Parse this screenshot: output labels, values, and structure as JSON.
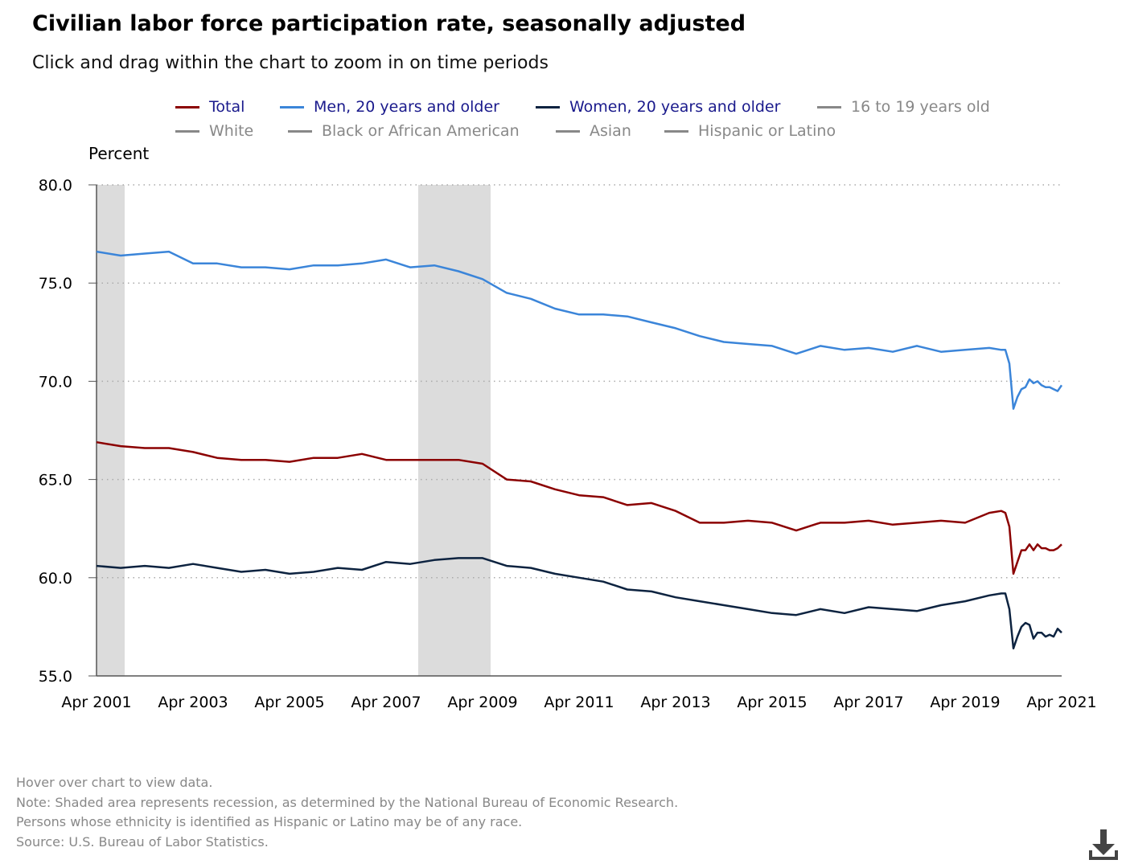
{
  "header": {
    "title": "Civilian labor force participation rate, seasonally adjusted",
    "subtitle": "Click and drag within the chart to zoom in on time periods"
  },
  "legend": {
    "row1": [
      {
        "label": "Total",
        "color": "#8b0000",
        "text_color": "#1a1a8c",
        "active": true
      },
      {
        "label": "Men, 20 years and older",
        "color": "#3b85d9",
        "text_color": "#1a1a8c",
        "active": true
      },
      {
        "label": "Women, 20 years and older",
        "color": "#0d2340",
        "text_color": "#1a1a8c",
        "active": true
      },
      {
        "label": "16 to 19 years old",
        "color": "#888888",
        "text_color": "#888888",
        "active": false
      }
    ],
    "row2": [
      {
        "label": "White",
        "color": "#888888",
        "text_color": "#888888",
        "active": false
      },
      {
        "label": "Black or African American",
        "color": "#888888",
        "text_color": "#888888",
        "active": false
      },
      {
        "label": "Asian",
        "color": "#888888",
        "text_color": "#888888",
        "active": false
      },
      {
        "label": "Hispanic or Latino",
        "color": "#888888",
        "text_color": "#888888",
        "active": false
      }
    ]
  },
  "footer": {
    "hover": "Hover over chart to view data.",
    "note": "Note: Shaded area represents recession, as determined by the National Bureau of Economic Research.",
    "ethnicity": "Persons whose ethnicity is identified as Hispanic or Latino may be of any race.",
    "source": "Source: U.S. Bureau of Labor Statistics."
  },
  "download_icon": "download-icon",
  "chart_data": {
    "type": "line",
    "ylabel": "Percent",
    "ylim": [
      55.0,
      80.0
    ],
    "yticks": [
      "55.0",
      "60.0",
      "65.0",
      "70.0",
      "75.0",
      "80.0"
    ],
    "xlim": [
      "2001-04",
      "2021-04"
    ],
    "xticks": [
      "Apr 2001",
      "Apr 2003",
      "Apr 2005",
      "Apr 2007",
      "Apr 2009",
      "Apr 2011",
      "Apr 2013",
      "Apr 2015",
      "Apr 2017",
      "Apr 2019",
      "Apr 2021"
    ],
    "grid": "horizontal dotted",
    "recessions": [
      {
        "start": "2001-04",
        "end": "2001-11"
      },
      {
        "start": "2007-12",
        "end": "2009-06"
      }
    ],
    "series": [
      {
        "name": "Total",
        "color": "#8b0000",
        "points": [
          [
            "2001-04",
            66.9
          ],
          [
            "2001-10",
            66.7
          ],
          [
            "2002-04",
            66.6
          ],
          [
            "2002-10",
            66.6
          ],
          [
            "2003-04",
            66.4
          ],
          [
            "2003-10",
            66.1
          ],
          [
            "2004-04",
            66.0
          ],
          [
            "2004-10",
            66.0
          ],
          [
            "2005-04",
            65.9
          ],
          [
            "2005-10",
            66.1
          ],
          [
            "2006-04",
            66.1
          ],
          [
            "2006-10",
            66.3
          ],
          [
            "2007-04",
            66.0
          ],
          [
            "2007-10",
            66.0
          ],
          [
            "2008-04",
            66.0
          ],
          [
            "2008-10",
            66.0
          ],
          [
            "2009-04",
            65.8
          ],
          [
            "2009-10",
            65.0
          ],
          [
            "2010-04",
            64.9
          ],
          [
            "2010-10",
            64.5
          ],
          [
            "2011-04",
            64.2
          ],
          [
            "2011-10",
            64.1
          ],
          [
            "2012-04",
            63.7
          ],
          [
            "2012-10",
            63.8
          ],
          [
            "2013-04",
            63.4
          ],
          [
            "2013-10",
            62.8
          ],
          [
            "2014-04",
            62.8
          ],
          [
            "2014-10",
            62.9
          ],
          [
            "2015-04",
            62.8
          ],
          [
            "2015-10",
            62.4
          ],
          [
            "2016-04",
            62.8
          ],
          [
            "2016-10",
            62.8
          ],
          [
            "2017-04",
            62.9
          ],
          [
            "2017-10",
            62.7
          ],
          [
            "2018-04",
            62.8
          ],
          [
            "2018-10",
            62.9
          ],
          [
            "2019-04",
            62.8
          ],
          [
            "2019-10",
            63.3
          ],
          [
            "2020-01",
            63.4
          ],
          [
            "2020-02",
            63.3
          ],
          [
            "2020-03",
            62.6
          ],
          [
            "2020-04",
            60.2
          ],
          [
            "2020-05",
            60.8
          ],
          [
            "2020-06",
            61.4
          ],
          [
            "2020-07",
            61.4
          ],
          [
            "2020-08",
            61.7
          ],
          [
            "2020-09",
            61.4
          ],
          [
            "2020-10",
            61.7
          ],
          [
            "2020-11",
            61.5
          ],
          [
            "2020-12",
            61.5
          ],
          [
            "2021-01",
            61.4
          ],
          [
            "2021-02",
            61.4
          ],
          [
            "2021-03",
            61.5
          ],
          [
            "2021-04",
            61.7
          ]
        ]
      },
      {
        "name": "Men, 20 years and older",
        "color": "#3b85d9",
        "points": [
          [
            "2001-04",
            76.6
          ],
          [
            "2001-10",
            76.4
          ],
          [
            "2002-04",
            76.5
          ],
          [
            "2002-10",
            76.6
          ],
          [
            "2003-04",
            76.0
          ],
          [
            "2003-10",
            76.0
          ],
          [
            "2004-04",
            75.8
          ],
          [
            "2004-10",
            75.8
          ],
          [
            "2005-04",
            75.7
          ],
          [
            "2005-10",
            75.9
          ],
          [
            "2006-04",
            75.9
          ],
          [
            "2006-10",
            76.0
          ],
          [
            "2007-04",
            76.2
          ],
          [
            "2007-10",
            75.8
          ],
          [
            "2008-04",
            75.9
          ],
          [
            "2008-10",
            75.6
          ],
          [
            "2009-04",
            75.2
          ],
          [
            "2009-10",
            74.5
          ],
          [
            "2010-04",
            74.2
          ],
          [
            "2010-10",
            73.7
          ],
          [
            "2011-04",
            73.4
          ],
          [
            "2011-10",
            73.4
          ],
          [
            "2012-04",
            73.3
          ],
          [
            "2012-10",
            73.0
          ],
          [
            "2013-04",
            72.7
          ],
          [
            "2013-10",
            72.3
          ],
          [
            "2014-04",
            72.0
          ],
          [
            "2014-10",
            71.9
          ],
          [
            "2015-04",
            71.8
          ],
          [
            "2015-10",
            71.4
          ],
          [
            "2016-04",
            71.8
          ],
          [
            "2016-10",
            71.6
          ],
          [
            "2017-04",
            71.7
          ],
          [
            "2017-10",
            71.5
          ],
          [
            "2018-04",
            71.8
          ],
          [
            "2018-10",
            71.5
          ],
          [
            "2019-04",
            71.6
          ],
          [
            "2019-10",
            71.7
          ],
          [
            "2020-01",
            71.6
          ],
          [
            "2020-02",
            71.6
          ],
          [
            "2020-03",
            70.9
          ],
          [
            "2020-04",
            68.6
          ],
          [
            "2020-05",
            69.2
          ],
          [
            "2020-06",
            69.6
          ],
          [
            "2020-07",
            69.7
          ],
          [
            "2020-08",
            70.1
          ],
          [
            "2020-09",
            69.9
          ],
          [
            "2020-10",
            70.0
          ],
          [
            "2020-11",
            69.8
          ],
          [
            "2020-12",
            69.7
          ],
          [
            "2021-01",
            69.7
          ],
          [
            "2021-02",
            69.6
          ],
          [
            "2021-03",
            69.5
          ],
          [
            "2021-04",
            69.8
          ]
        ]
      },
      {
        "name": "Women, 20 years and older",
        "color": "#0d2340",
        "points": [
          [
            "2001-04",
            60.6
          ],
          [
            "2001-10",
            60.5
          ],
          [
            "2002-04",
            60.6
          ],
          [
            "2002-10",
            60.5
          ],
          [
            "2003-04",
            60.7
          ],
          [
            "2003-10",
            60.5
          ],
          [
            "2004-04",
            60.3
          ],
          [
            "2004-10",
            60.4
          ],
          [
            "2005-04",
            60.2
          ],
          [
            "2005-10",
            60.3
          ],
          [
            "2006-04",
            60.5
          ],
          [
            "2006-10",
            60.4
          ],
          [
            "2007-04",
            60.8
          ],
          [
            "2007-10",
            60.7
          ],
          [
            "2008-04",
            60.9
          ],
          [
            "2008-10",
            61.0
          ],
          [
            "2009-04",
            61.0
          ],
          [
            "2009-10",
            60.6
          ],
          [
            "2010-04",
            60.5
          ],
          [
            "2010-10",
            60.2
          ],
          [
            "2011-04",
            60.0
          ],
          [
            "2011-10",
            59.8
          ],
          [
            "2012-04",
            59.4
          ],
          [
            "2012-10",
            59.3
          ],
          [
            "2013-04",
            59.0
          ],
          [
            "2013-10",
            58.8
          ],
          [
            "2014-04",
            58.6
          ],
          [
            "2014-10",
            58.4
          ],
          [
            "2015-04",
            58.2
          ],
          [
            "2015-10",
            58.1
          ],
          [
            "2016-04",
            58.4
          ],
          [
            "2016-10",
            58.2
          ],
          [
            "2017-04",
            58.5
          ],
          [
            "2017-10",
            58.4
          ],
          [
            "2018-04",
            58.3
          ],
          [
            "2018-10",
            58.6
          ],
          [
            "2019-04",
            58.8
          ],
          [
            "2019-10",
            59.1
          ],
          [
            "2020-01",
            59.2
          ],
          [
            "2020-02",
            59.2
          ],
          [
            "2020-03",
            58.4
          ],
          [
            "2020-04",
            56.4
          ],
          [
            "2020-05",
            57.0
          ],
          [
            "2020-06",
            57.5
          ],
          [
            "2020-07",
            57.7
          ],
          [
            "2020-08",
            57.6
          ],
          [
            "2020-09",
            56.9
          ],
          [
            "2020-10",
            57.2
          ],
          [
            "2020-11",
            57.2
          ],
          [
            "2020-12",
            57.0
          ],
          [
            "2021-01",
            57.1
          ],
          [
            "2021-02",
            57.0
          ],
          [
            "2021-03",
            57.4
          ],
          [
            "2021-04",
            57.2
          ]
        ]
      }
    ]
  }
}
